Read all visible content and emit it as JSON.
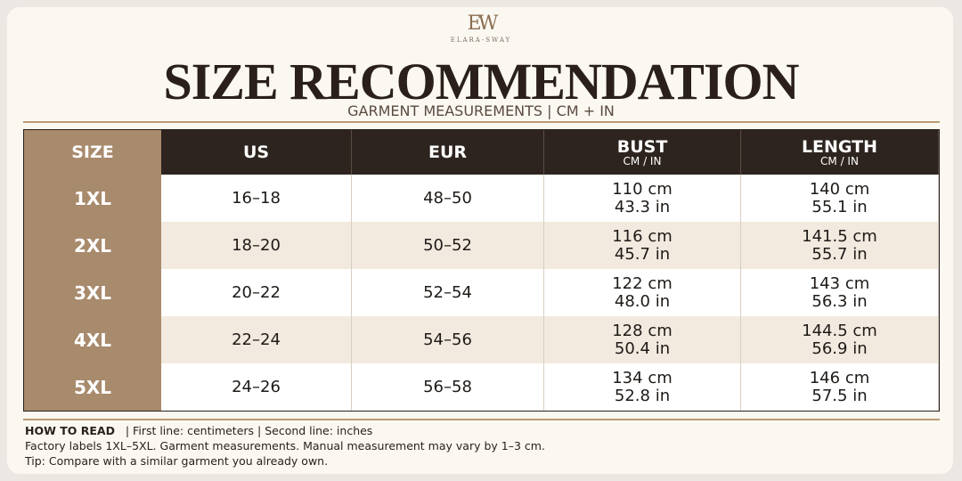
{
  "header": {
    "monogram": "EW",
    "brand": "ELARA-SWAY",
    "title": "SIZE RECOMMENDATION",
    "subtitle": "GARMENT MEASUREMENTS |  CM + IN"
  },
  "table": {
    "columns": [
      {
        "label": "SIZE"
      },
      {
        "label": "US"
      },
      {
        "label": "EUR"
      },
      {
        "label": "BUST",
        "sublabel": "CM / IN"
      },
      {
        "label": "LENGTH",
        "sublabel": "CM / IN"
      }
    ],
    "rows": [
      [
        "1XL",
        "16–18",
        "48–50",
        [
          "110 cm",
          "43.3 in"
        ],
        [
          "140 cm",
          "55.1 in"
        ]
      ],
      [
        "2XL",
        "18–20",
        "50–52",
        [
          "116 cm",
          "45.7 in"
        ],
        [
          "141.5 cm",
          "55.7 in"
        ]
      ],
      [
        "3XL",
        "20–22",
        "52–54",
        [
          "122 cm",
          "48.0 in"
        ],
        [
          "143 cm",
          "56.3 in"
        ]
      ],
      [
        "4XL",
        "22–24",
        "54–56",
        [
          "128 cm",
          "50.4 in"
        ],
        [
          "144.5 cm",
          "56.9 in"
        ]
      ],
      [
        "5XL",
        "24–26",
        "56–58",
        [
          "134 cm",
          "52.8 in"
        ],
        [
          "146 cm",
          "57.5 in"
        ]
      ]
    ]
  },
  "footer": {
    "how_label": "HOW TO READ",
    "how_text": "|   First line: centimeters   |   Second line: inches",
    "note": "Factory labels 1XL–5XL. Garment measurements. Manual measurement may vary by 1–3 cm.",
    "tip": "Tip: Compare with a similar garment you already own."
  }
}
